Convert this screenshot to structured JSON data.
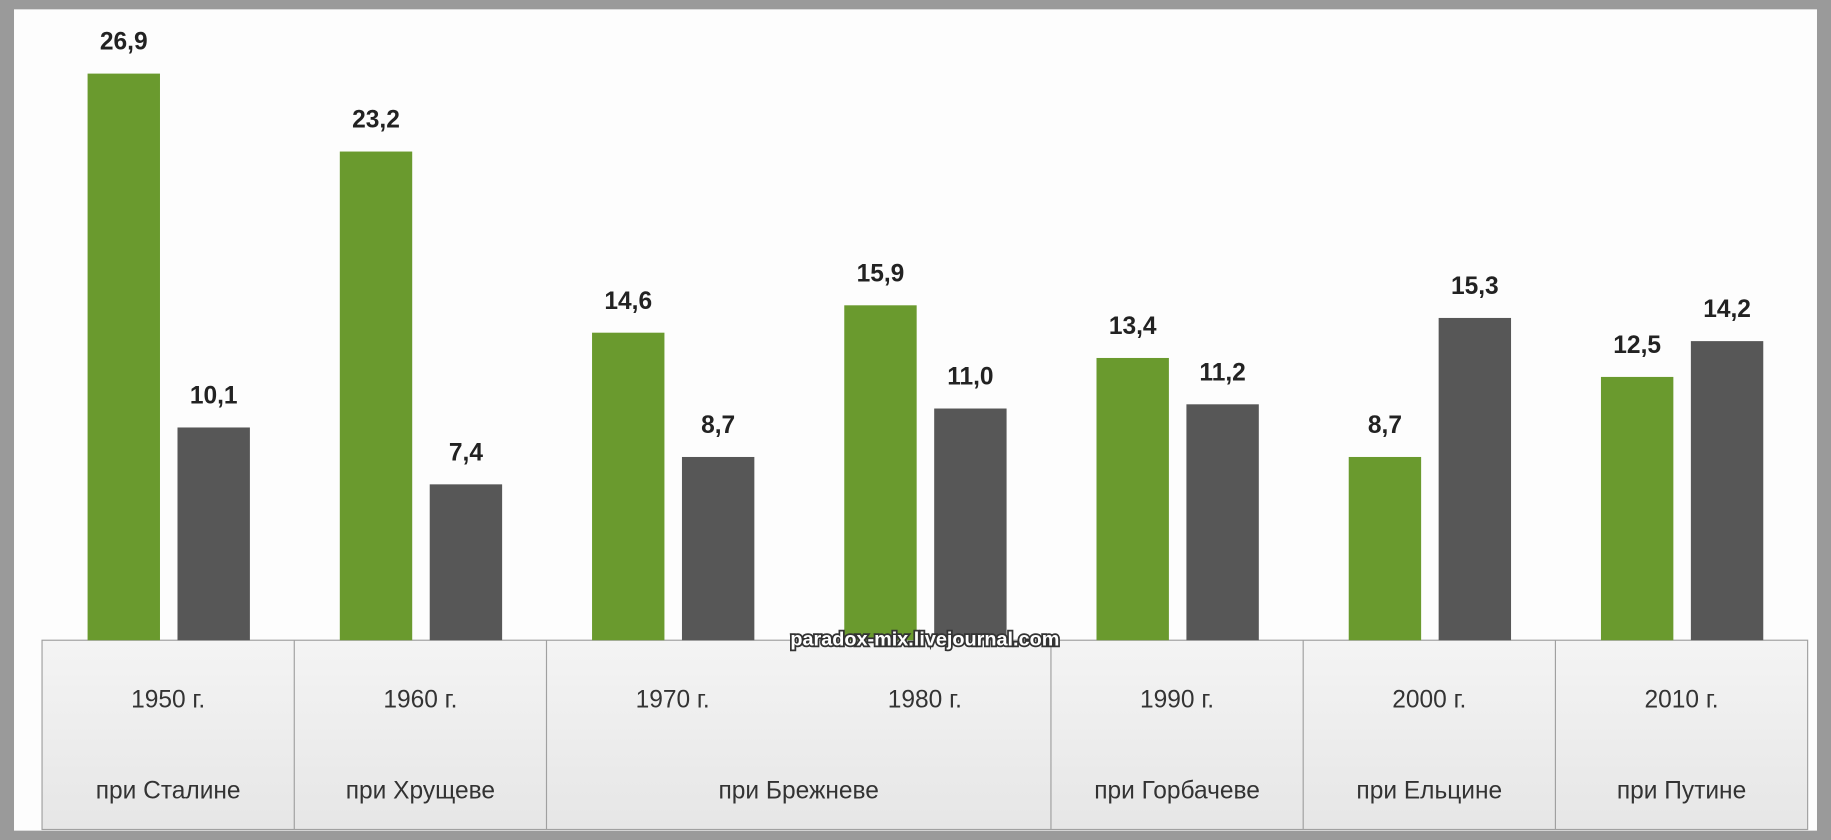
{
  "chart_data": {
    "type": "bar",
    "categories": [
      "1950 г.",
      "1960 г.",
      "1970 г.",
      "1980 г.",
      "1990 г.",
      "2000 г.",
      "2010 г."
    ],
    "groups": [
      {
        "name": "при Сталине",
        "categories": [
          "1950 г."
        ]
      },
      {
        "name": "при Хрущеве",
        "categories": [
          "1960 г."
        ]
      },
      {
        "name": "при Брежневе",
        "categories": [
          "1970 г.",
          "1980 г."
        ]
      },
      {
        "name": "при Горбачеве",
        "categories": [
          "1990 г."
        ]
      },
      {
        "name": "при Ельцине",
        "categories": [
          "2000 г."
        ]
      },
      {
        "name": "при Путине",
        "categories": [
          "2010 г."
        ]
      }
    ],
    "series": [
      {
        "color": "#6a9a2e",
        "values": [
          26.9,
          23.2,
          14.6,
          15.9,
          13.4,
          8.7,
          12.5
        ],
        "value_labels": [
          "26,9",
          "23,2",
          "14,6",
          "15,9",
          "13,4",
          "8,7",
          "12,5"
        ]
      },
      {
        "color": "#575757",
        "values": [
          10.1,
          7.4,
          8.7,
          11.0,
          11.2,
          15.3,
          14.2
        ],
        "value_labels": [
          "10,1",
          "7,4",
          "8,7",
          "11,0",
          "11,2",
          "15,3",
          "14,2"
        ]
      }
    ],
    "annotation": "paradox-mix.livejournal.com"
  }
}
